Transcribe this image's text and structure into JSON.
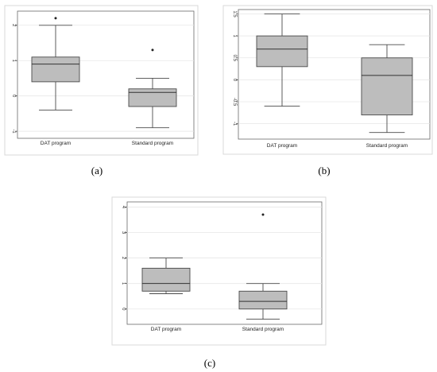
{
  "chart_data": [
    {
      "type": "box",
      "panel_label": "(a)",
      "categories": [
        "DAT program",
        "Standard program"
      ],
      "boxes": [
        {
          "min": -0.4,
          "q1": 0.4,
          "median": 0.9,
          "q3": 1.1,
          "max": 2.0,
          "outliers": [
            2.2
          ]
        },
        {
          "min": -0.9,
          "q1": -0.3,
          "median": 0.1,
          "q3": 0.2,
          "max": 0.5,
          "outliers": [
            1.3
          ]
        }
      ],
      "ylim": [
        -1.2,
        2.4
      ],
      "yticks": [
        -1,
        0,
        1,
        2
      ],
      "ytick_labels": [
        "-1",
        "0",
        "1",
        "2"
      ],
      "grid": true
    },
    {
      "type": "box",
      "panel_label": "(b)",
      "categories": [
        "DAT program",
        "Standard program"
      ],
      "boxes": [
        {
          "min": -0.6,
          "q1": 0.3,
          "median": 0.7,
          "q3": 1.0,
          "max": 1.5,
          "outliers": []
        },
        {
          "min": -1.2,
          "q1": -0.8,
          "median": 0.1,
          "q3": 0.5,
          "max": 0.8,
          "outliers": []
        }
      ],
      "ylim": [
        -1.35,
        1.6
      ],
      "yticks": [
        -1,
        -0.5,
        0,
        0.5,
        1,
        1.5
      ],
      "ytick_labels": [
        "-1",
        "-0.5",
        "0",
        "0.5",
        "1",
        "1.5"
      ],
      "grid": true
    },
    {
      "type": "box",
      "panel_label": "(c)",
      "categories": [
        "DAT program",
        "Standard program"
      ],
      "boxes": [
        {
          "min": 0.6,
          "q1": 0.7,
          "median": 1.0,
          "q3": 1.6,
          "max": 2.0,
          "outliers": []
        },
        {
          "min": -0.4,
          "q1": 0.0,
          "median": 0.3,
          "q3": 0.7,
          "max": 1.0,
          "outliers": [
            3.7
          ]
        }
      ],
      "ylim": [
        -0.6,
        4.2
      ],
      "yticks": [
        0,
        1,
        2,
        3,
        4
      ],
      "ytick_labels": [
        "0",
        "1",
        "2",
        "3",
        "4"
      ],
      "grid": true
    }
  ]
}
